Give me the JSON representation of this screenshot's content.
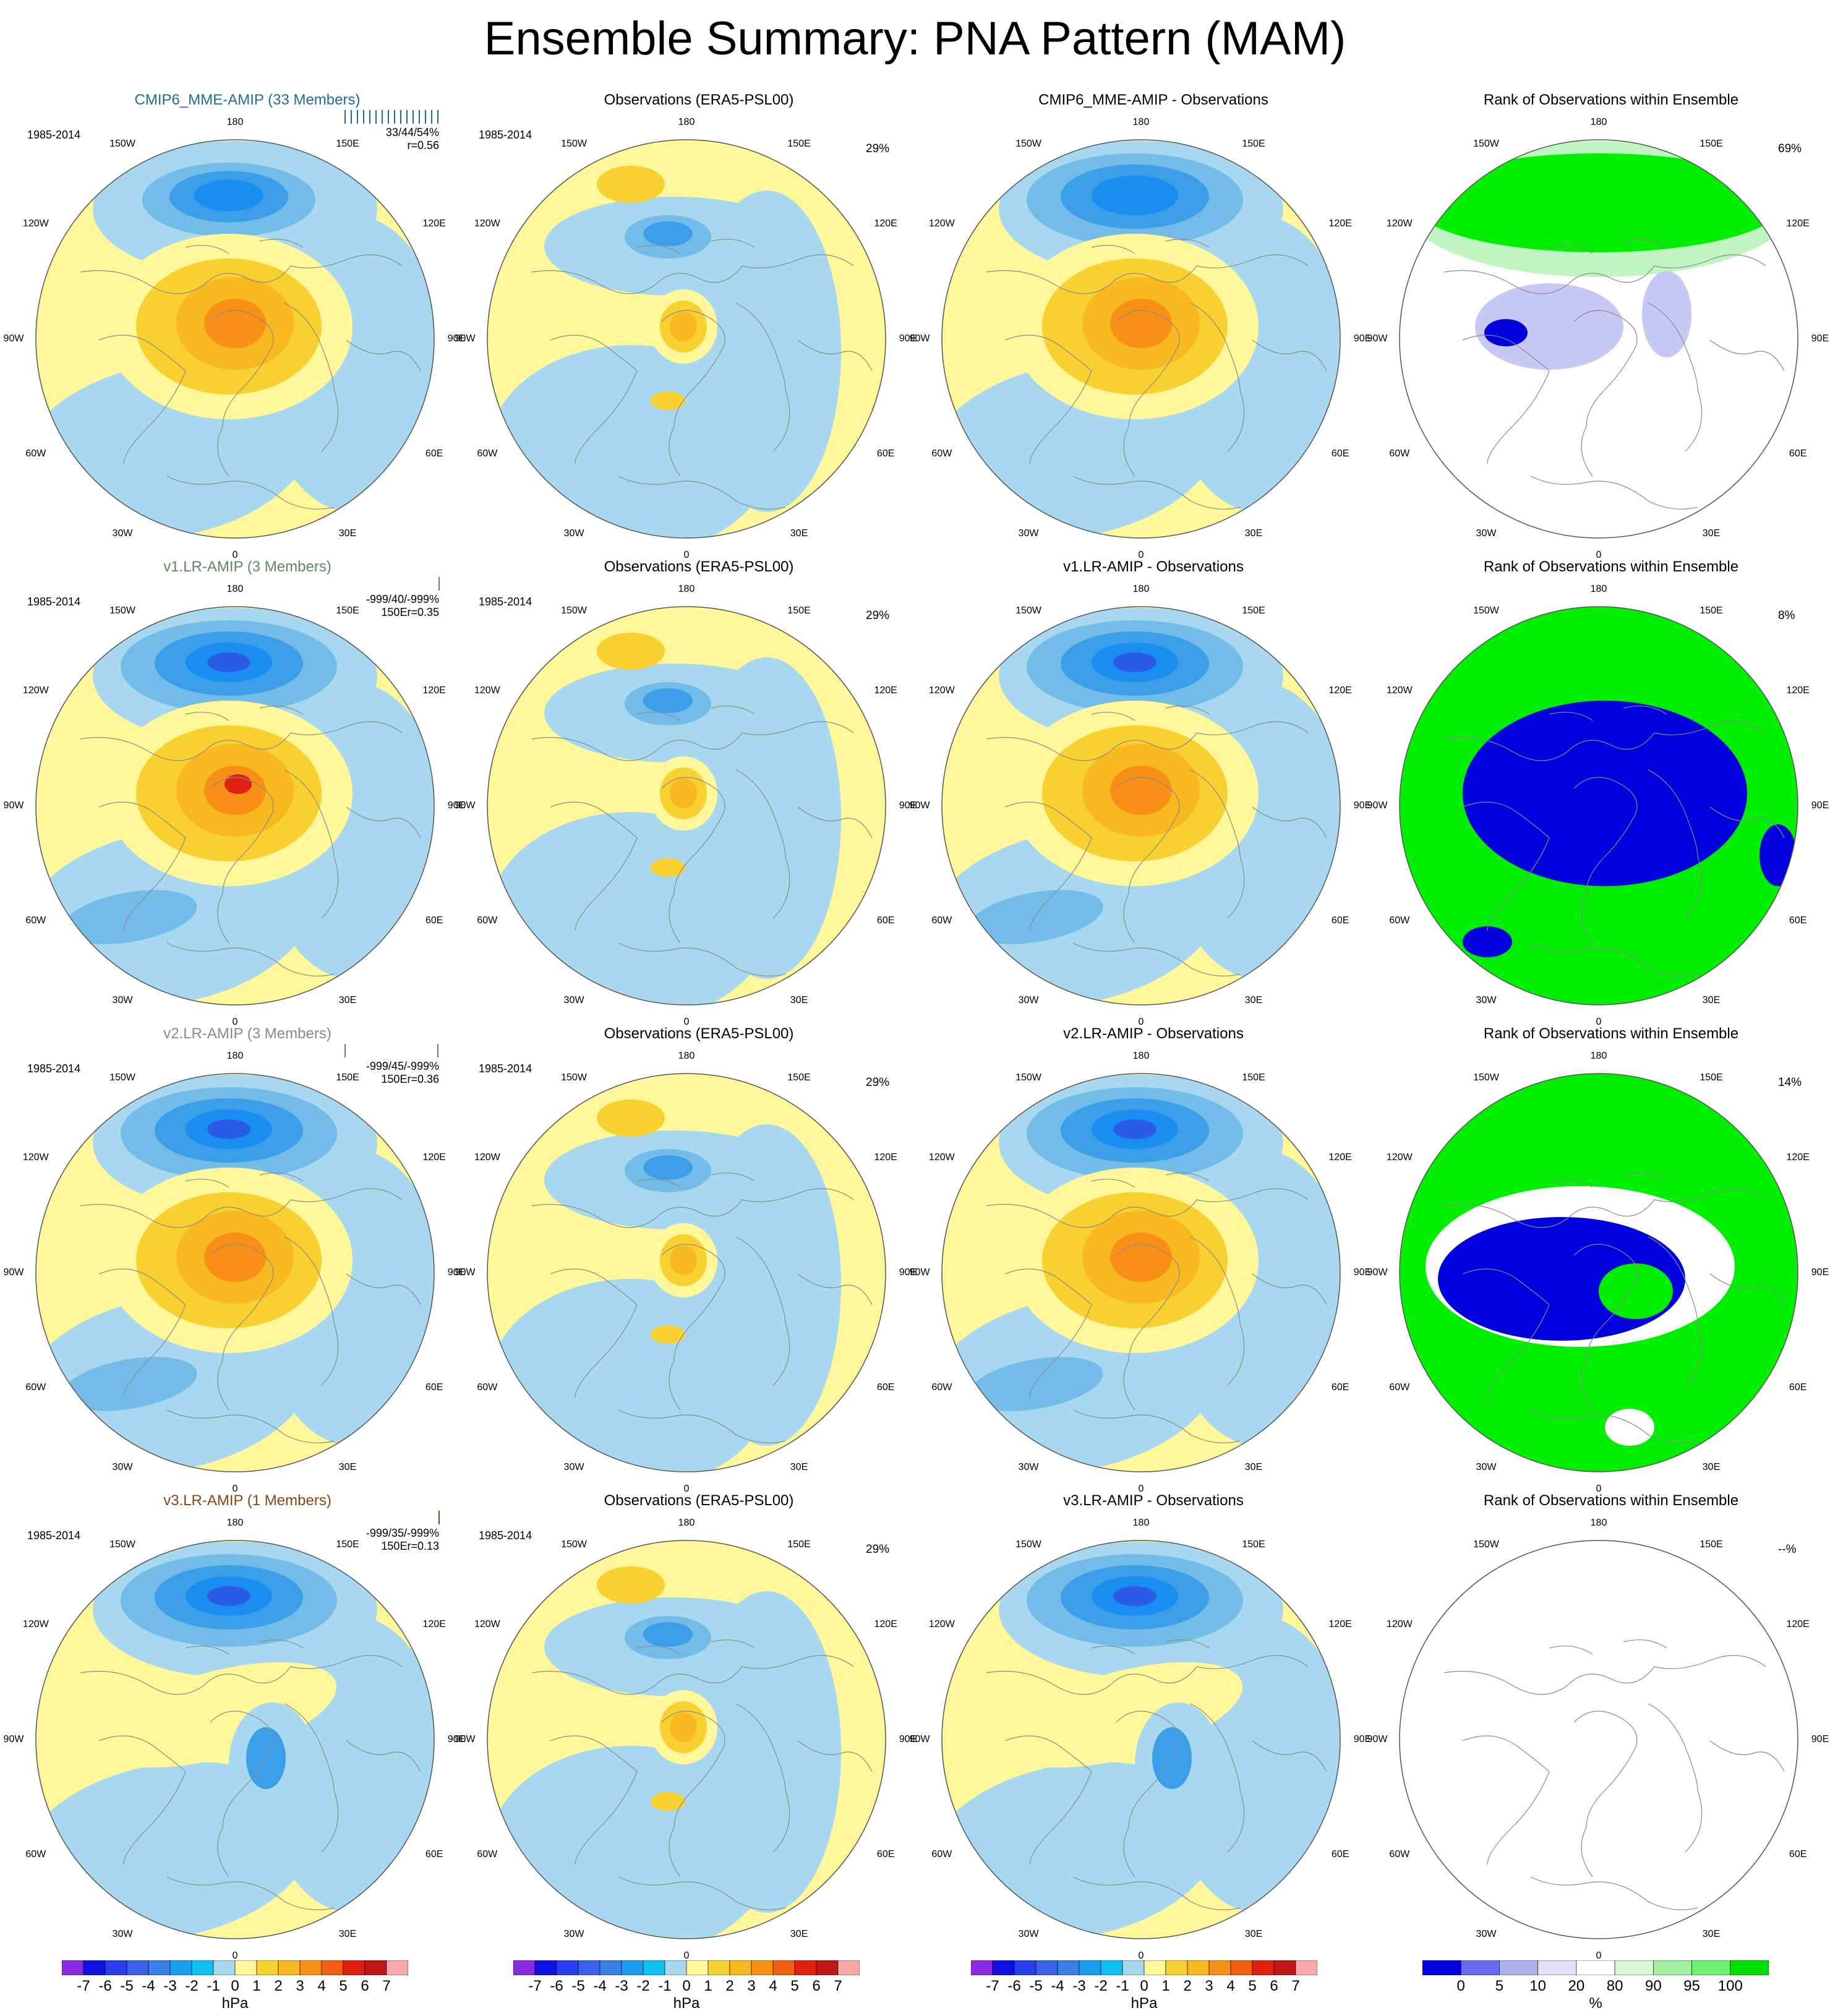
{
  "title": "Ensemble Summary: PNA Pattern (MAM)",
  "longitude_labels": [
    "180",
    "150W",
    "150E",
    "120W",
    "120E",
    "90W",
    "90E",
    "60W",
    "60E",
    "30W",
    "30E",
    "0"
  ],
  "rows": [
    {
      "model": {
        "title": "CMIP6_MME-AMIP (33 Members)",
        "title_color": "#1f6e8c",
        "period": "1985-2014",
        "stats_line1": "33/44/54%",
        "stats_line2": "r=0.56",
        "stats_prefix": "",
        "bar_ticks": 16,
        "bar_color": "#1f6e8c"
      },
      "obs": {
        "title": "Observations (ERA5-PSL00)",
        "period": "1985-2014",
        "pct": "29%"
      },
      "diff": {
        "title": "CMIP6_MME-AMIP - Observations"
      },
      "rank": {
        "title": "Rank of Observations within Ensemble",
        "pct": "69%",
        "style": "mme"
      }
    },
    {
      "model": {
        "title": "v1.LR-AMIP (3 Members)",
        "title_color": "#5c8a5c",
        "period": "1985-2014",
        "stats_line1": "-999/40/-999%",
        "stats_line2": "r=0.35",
        "stats_prefix": "150E",
        "bar_ticks": 1,
        "bar_color": "#5c8a5c"
      },
      "obs": {
        "title": "Observations (ERA5-PSL00)",
        "period": "1985-2014",
        "pct": "29%"
      },
      "diff": {
        "title": "v1.LR-AMIP - Observations"
      },
      "rank": {
        "title": "Rank of Observations within Ensemble",
        "pct": "8%",
        "style": "v1"
      }
    },
    {
      "model": {
        "title": "v2.LR-AMIP (3 Members)",
        "title_color": "#888888",
        "period": "1985-2014",
        "stats_line1": "-999/45/-999%",
        "stats_line2": "r=0.36",
        "stats_prefix": "150E",
        "bar_ticks": 2,
        "bar_color": "#777777"
      },
      "obs": {
        "title": "Observations (ERA5-PSL00)",
        "period": "1985-2014",
        "pct": "29%"
      },
      "diff": {
        "title": "v2.LR-AMIP - Observations"
      },
      "rank": {
        "title": "Rank of Observations within Ensemble",
        "pct": "14%",
        "style": "v2"
      }
    },
    {
      "model": {
        "title": "v3.LR-AMIP (1 Members)",
        "title_color": "#8b4513",
        "period": "1985-2014",
        "stats_line1": "-999/35/-999%",
        "stats_line2": "r=0.13",
        "stats_prefix": "150E",
        "bar_ticks": 1,
        "bar_color": "#8b4513"
      },
      "obs": {
        "title": "Observations (ERA5-PSL00)",
        "period": "1985-2014",
        "pct": "29%"
      },
      "diff": {
        "title": "v3.LR-AMIP - Observations"
      },
      "rank": {
        "title": "Rank of Observations within Ensemble",
        "pct": "--%",
        "style": "v3"
      }
    }
  ],
  "colorbars": {
    "hpa": {
      "labels": [
        "-7",
        "-6",
        "-5",
        "-4",
        "-3",
        "-2",
        "-1",
        "0",
        "1",
        "2",
        "3",
        "4",
        "5",
        "6",
        "7"
      ],
      "unit": "hPa",
      "colors": [
        "#8a2be2",
        "#1010e0",
        "#2a40f0",
        "#3a62e8",
        "#3a7ee8",
        "#1a9ef0",
        "#10c0f0",
        "#a8d8f0",
        "#fff79a",
        "#f8d030",
        "#f8b820",
        "#f89018",
        "#f06010",
        "#e02010",
        "#c01818",
        "#f8a8a8"
      ]
    },
    "pct": {
      "labels": [
        "0",
        "5",
        "10",
        "20",
        "80",
        "90",
        "95",
        "100"
      ],
      "unit": "%",
      "colors": [
        "#0000e0",
        "#6868f0",
        "#b0b0f0",
        "#e0e0f8",
        "#ffffff",
        "#d8f8d8",
        "#a0f0a0",
        "#70f070",
        "#00e000"
      ]
    }
  },
  "colors": {
    "neg1": "#a8d8f0",
    "pos1": "#fff79a",
    "neg2": "#74bce8",
    "neg3": "#3a9ee8",
    "neg4": "#1a8ef0",
    "neg5": "#2a5ce8",
    "pos2": "#f8d030",
    "pos3": "#f8b820",
    "pos4": "#f89018",
    "pos5": "#f06010",
    "pos6": "#e02010",
    "rank_green": "#00ee00",
    "rank_blue": "#0000dd",
    "rank_lightblue": "#c8c8f4",
    "rank_lightgreen": "#c0f4c0"
  }
}
